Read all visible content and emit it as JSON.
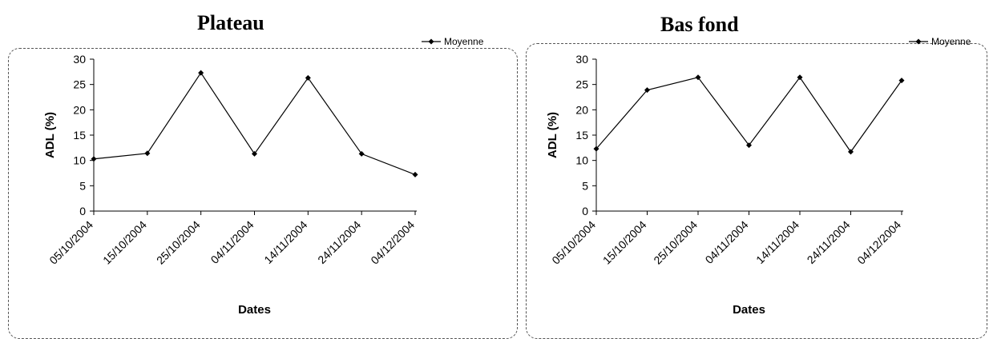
{
  "chart_data": [
    {
      "type": "line",
      "title": "Plateau",
      "xlabel": "Dates",
      "ylabel": "ADL (%)",
      "categories": [
        "05/10/2004",
        "15/10/2004",
        "25/10/2004",
        "04/11/2004",
        "14/11/2004",
        "24/11/2004",
        "04/12/2004"
      ],
      "series": [
        {
          "name": "Moyenne",
          "values": [
            10.3,
            11.4,
            27.3,
            11.3,
            26.3,
            11.3,
            7.2
          ]
        }
      ],
      "ylim": [
        0,
        30
      ],
      "yticks": [
        0,
        5,
        10,
        15,
        20,
        25,
        30
      ],
      "grid": false,
      "legend": "top-right",
      "color": "#000000"
    },
    {
      "type": "line",
      "title": "Bas fond",
      "xlabel": "Dates",
      "ylabel": "ADL (%)",
      "categories": [
        "05/10/2004",
        "15/10/2004",
        "25/10/2004",
        "04/11/2004",
        "14/11/2004",
        "24/11/2004",
        "04/12/2004"
      ],
      "series": [
        {
          "name": "Moyenne",
          "values": [
            12.3,
            23.9,
            26.4,
            13.0,
            26.4,
            11.7,
            25.8
          ]
        }
      ],
      "ylim": [
        0,
        30
      ],
      "yticks": [
        0,
        5,
        10,
        15,
        20,
        25,
        30
      ],
      "grid": false,
      "legend": "top-right",
      "color": "#000000"
    }
  ]
}
